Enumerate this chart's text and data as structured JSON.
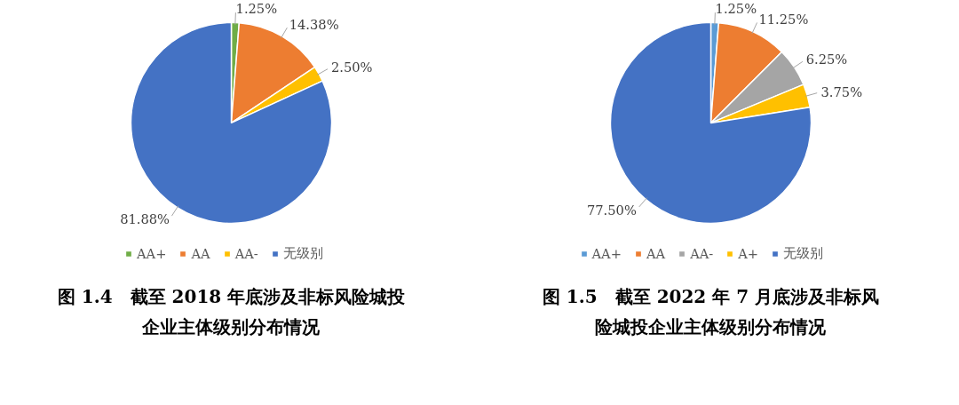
{
  "chart_data": [
    {
      "type": "pie",
      "title": "图 1.4　截至 2018 年底涉及非标风险城投企业主体级别分布情况",
      "categories": [
        "AA+",
        "AA",
        "AA-",
        "无级别"
      ],
      "values": [
        1.25,
        14.38,
        2.5,
        81.88
      ],
      "value_labels": [
        "1.25%",
        "14.38%",
        "2.50%",
        "81.88%"
      ],
      "colors": [
        "#70ad47",
        "#ed7d31",
        "#ffc000",
        "#4472c4"
      ],
      "legend": "bottom"
    },
    {
      "type": "pie",
      "title": "图 1.5　截至 2022 年 7 月底涉及非标风险城投企业主体级别分布情况",
      "categories": [
        "AA+",
        "AA",
        "AA-",
        "A+",
        "无级别"
      ],
      "values": [
        1.25,
        11.25,
        6.25,
        3.75,
        77.5
      ],
      "value_labels": [
        "1.25%",
        "11.25%",
        "6.25%",
        "3.75%",
        "77.50%"
      ],
      "colors": [
        "#5b9bd5",
        "#ed7d31",
        "#a5a5a5",
        "#ffc000",
        "#4472c4"
      ],
      "legend": "bottom"
    }
  ]
}
